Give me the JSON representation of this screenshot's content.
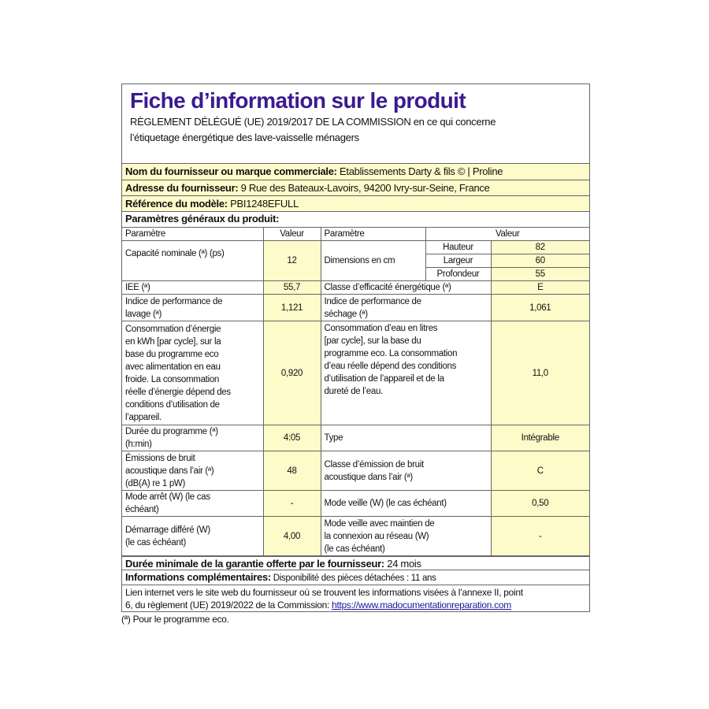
{
  "header": {
    "title": "Fiche d’information sur le produit",
    "subtitle": "RÈGLEMENT DÉLÉGUÉ (UE) 2019/2017 DE LA COMMISSION en ce qui concerne\nl’étiquetage énergétique des lave-vaisselle ménagers"
  },
  "supplier": {
    "name_label": "Nom du fournisseur ou marque commerciale:",
    "name_value": " Etablissements Darty & fils © |  Proline",
    "address_label": "Adresse du fournisseur:",
    "address_value": " 9 Rue des Bateaux-Lavoirs, 94200 Ivry-sur-Seine, France",
    "model_label": "Référence du modèle:",
    "model_value": "  PBI1248EFULL"
  },
  "params": {
    "section_title": "Paramètres généraux du produit:",
    "col_param": "Paramètre",
    "col_value": "Valeur",
    "capacity_label": "Capacité nominale (ª) (ps)",
    "capacity_value": "12",
    "dimensions_label": "Dimensions en cm",
    "height_label": "Hauteur",
    "height_value": "82",
    "width_label": "Largeur",
    "width_value": "60",
    "depth_label": "Profondeur",
    "depth_value": "55",
    "iee_label": "IEE (ª)",
    "iee_value": "55,7",
    "energy_class_label": "Classe d’efficacité énergétique (ª)",
    "energy_class_value": "E",
    "wash_label": "Indice de performance de\nlavage (ª)",
    "wash_value": "1,121",
    "dry_label": "Indice de performance de\nséchage (ª)",
    "dry_value": "1,061",
    "energy_label": "Consommation d’énergie\nen kWh [par cycle], sur la\nbase du programme eco\navec alimentation en eau\nfroide. La consommation\nréelle d’énergie dépend des\nconditions d’utilisation de\nl’appareil.",
    "energy_value": "0,920",
    "water_label": "Consommation d’eau en litres\n[par cycle], sur la base du\nprogramme eco. La consommation\nd’eau réelle dépend des conditions\nd’utilisation de l’appareil et de la\ndureté de l’eau.",
    "water_value": "11,0",
    "duration_label": "Durée du programme (ª)\n(h:min)",
    "duration_value": "4:05",
    "type_label": "Type",
    "type_value": "Intégrable",
    "noise_label": "Émissions de bruit\nacoustique dans l’air (ª)\n(dB(A) re 1 pW)",
    "noise_value": "48",
    "noise_class_label": "Classe d’émission de bruit\nacoustique dans l’air (ª)",
    "noise_class_value": "C",
    "off_label": "Mode arrêt (W) (le cas\néchéant)",
    "off_value": "-",
    "standby_label": "Mode veille (W) (le cas échéant)",
    "standby_value": "0,50",
    "delay_label": "Démarrage différé (W)\n(le cas échéant)",
    "delay_value": "4,00",
    "network_label": "Mode veille avec maintien de\nla connexion au réseau (W)\n(le cas échéant)",
    "network_value": "-"
  },
  "warranty": {
    "label": "Durée minimale de la garantie offerte par le fournisseur:",
    "value": "  24 mois"
  },
  "info": {
    "label": "Informations complémentaires:",
    "value": " Disponibilité des pièces détachées : 11 ans"
  },
  "link": {
    "text": "Lien internet vers le site web du fournisseur où se trouvent les informations visées à l’annexe II, point\n6, du règlement (UE) 2019/2022 de la Commission: ",
    "url": "https://www.madocumentationreparation.com"
  },
  "footnote": "(ª) Pour le programme eco.",
  "colors": {
    "title": "#3b1a8e",
    "highlight": "#fdfbc9"
  }
}
